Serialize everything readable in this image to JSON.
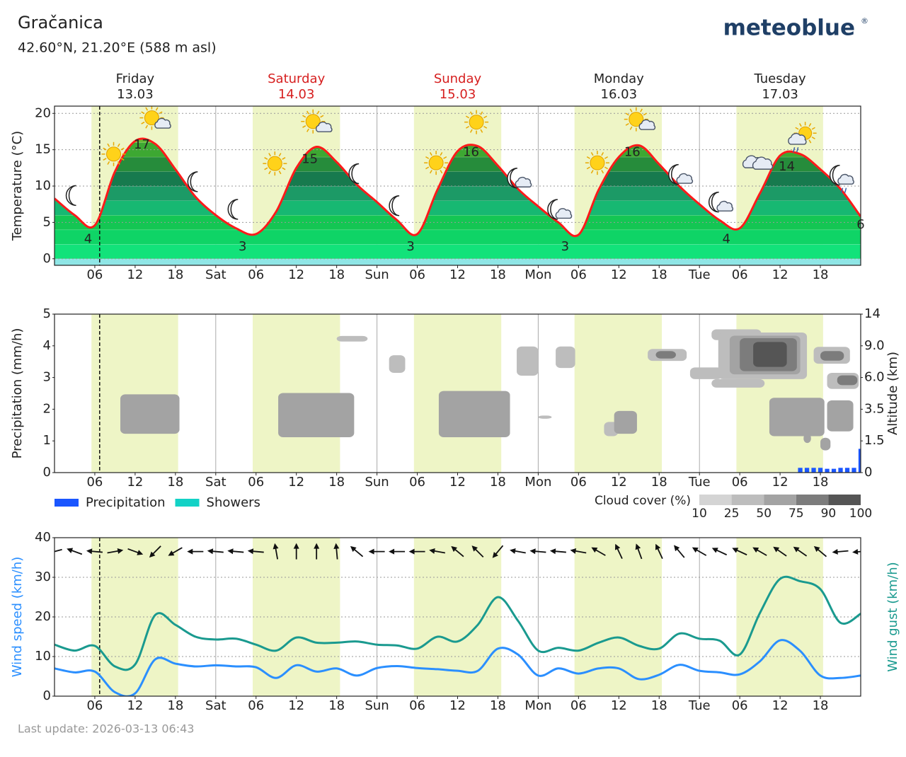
{
  "header": {
    "title": "Gračanica",
    "subtitle": "42.60°N, 21.20°E (588 m asl)",
    "logo": "meteoblue",
    "logo_mark": "®"
  },
  "footer": "Last update: 2026-03-13 06:43",
  "days": [
    {
      "name": "Friday",
      "date": "13.03",
      "start": 0,
      "weekend": false
    },
    {
      "name": "Saturday",
      "date": "14.03",
      "start": 24,
      "weekend": true
    },
    {
      "name": "Sunday",
      "date": "15.03",
      "start": 48,
      "weekend": true
    },
    {
      "name": "Monday",
      "date": "16.03",
      "start": 72,
      "weekend": false
    },
    {
      "name": "Tuesday",
      "date": "17.03",
      "start": 96,
      "weekend": false
    }
  ],
  "daylight": [
    [
      5.5,
      18.4
    ],
    [
      29.5,
      42.5
    ],
    [
      53.5,
      66.5
    ],
    [
      77.4,
      90.4
    ],
    [
      101.5,
      114.4
    ]
  ],
  "now": 6.72,
  "chart_data": [
    {
      "type": "line",
      "ylabel": "Temperature (°C)",
      "ylim": [
        -0.9,
        21
      ],
      "yticks": [
        0,
        5,
        10,
        15,
        20
      ],
      "grid": true,
      "xlim": [
        0,
        120
      ],
      "xticks": [
        {
          "value": 6,
          "label": "06"
        },
        {
          "value": 12,
          "label": "12"
        },
        {
          "value": 18,
          "label": "18"
        },
        {
          "value": 24,
          "label": "Sat"
        },
        {
          "value": 30,
          "label": "06"
        },
        {
          "value": 36,
          "label": "12"
        },
        {
          "value": 42,
          "label": "18"
        },
        {
          "value": 48,
          "label": "Sun"
        },
        {
          "value": 54,
          "label": "06"
        },
        {
          "value": 60,
          "label": "12"
        },
        {
          "value": 66,
          "label": "18"
        },
        {
          "value": 72,
          "label": "Mon"
        },
        {
          "value": 78,
          "label": "06"
        },
        {
          "value": 84,
          "label": "12"
        },
        {
          "value": 90,
          "label": "18"
        },
        {
          "value": 96,
          "label": "Tue"
        },
        {
          "value": 102,
          "label": "06"
        },
        {
          "value": 108,
          "label": "12"
        },
        {
          "value": 114,
          "label": "18"
        }
      ],
      "x": [
        0,
        3,
        6,
        9,
        12,
        15,
        18,
        21,
        24,
        27,
        30,
        33,
        36,
        39,
        42,
        45,
        48,
        51,
        54,
        57,
        60,
        63,
        66,
        69,
        72,
        75,
        78,
        81,
        84,
        87,
        90,
        93,
        96,
        99,
        102,
        105,
        108,
        111,
        114,
        117,
        120
      ],
      "series": [
        {
          "color": "#ff1a1a",
          "values": [
            8.3,
            6.0,
            4.6,
            12.0,
            16.2,
            15.8,
            12.3,
            8.5,
            6.0,
            4.2,
            3.4,
            6.5,
            12.5,
            15.4,
            13.3,
            10.2,
            7.8,
            5.3,
            3.4,
            9.5,
            14.8,
            15.5,
            12.8,
            9.6,
            7.2,
            5.0,
            3.3,
            9.5,
            14.0,
            15.6,
            13.0,
            10.0,
            7.5,
            5.3,
            4.2,
            9.0,
            14.2,
            14.4,
            12.3,
            9.6,
            5.8
          ]
        }
      ],
      "bands": [
        {
          "from": -2,
          "color": "#8fe6e6"
        },
        {
          "from": 0,
          "color": "#12e27a"
        },
        {
          "from": 2,
          "color": "#0fd466"
        },
        {
          "from": 4,
          "color": "#14c653"
        },
        {
          "from": 6,
          "color": "#17b872"
        },
        {
          "from": 8,
          "color": "#1c9a66"
        },
        {
          "from": 10,
          "color": "#177a4e"
        },
        {
          "from": 12,
          "color": "#268c3b"
        },
        {
          "from": 14,
          "color": "#3da832"
        },
        {
          "from": 16,
          "color": "#66bb33"
        }
      ],
      "extremes": [
        {
          "x": 5,
          "value": 4
        },
        {
          "x": 13,
          "value": 17
        },
        {
          "x": 28,
          "value": 3
        },
        {
          "x": 38,
          "value": 15
        },
        {
          "x": 53,
          "value": 3
        },
        {
          "x": 62,
          "value": 16
        },
        {
          "x": 76,
          "value": 3
        },
        {
          "x": 86,
          "value": 16
        },
        {
          "x": 100,
          "value": 4
        },
        {
          "x": 109,
          "value": 14
        },
        {
          "x": 120,
          "value": 6
        }
      ],
      "symbols": [
        {
          "x": 2.9,
          "y": 8.7,
          "icon": "moon"
        },
        {
          "x": 8.8,
          "y": 14.4,
          "icon": "sun"
        },
        {
          "x": 14.9,
          "y": 19,
          "icon": "sun-cloud"
        },
        {
          "x": 21,
          "y": 10.6,
          "icon": "moon"
        },
        {
          "x": 27,
          "y": 6.8,
          "icon": "moon"
        },
        {
          "x": 32.8,
          "y": 13.1,
          "icon": "sun"
        },
        {
          "x": 38.9,
          "y": 18.5,
          "icon": "sun-cloud"
        },
        {
          "x": 45,
          "y": 11.7,
          "icon": "moon"
        },
        {
          "x": 51,
          "y": 7.3,
          "icon": "moon"
        },
        {
          "x": 56.8,
          "y": 13.2,
          "icon": "sun"
        },
        {
          "x": 62.8,
          "y": 18.8,
          "icon": "sun"
        },
        {
          "x": 69,
          "y": 10.9,
          "icon": "moon-cloud"
        },
        {
          "x": 75,
          "y": 6.6,
          "icon": "moon-cloud"
        },
        {
          "x": 80.8,
          "y": 13.2,
          "icon": "sun"
        },
        {
          "x": 87,
          "y": 18.8,
          "icon": "sun-cloud"
        },
        {
          "x": 93,
          "y": 11.4,
          "icon": "moon-cloud"
        },
        {
          "x": 99,
          "y": 7.6,
          "icon": "moon-cloud"
        },
        {
          "x": 104.8,
          "y": 13.2,
          "icon": "cloud"
        },
        {
          "x": 110.9,
          "y": 16.5,
          "icon": "sun-cloud-rain"
        },
        {
          "x": 117,
          "y": 11.3,
          "icon": "moon-cloud-rain"
        }
      ]
    },
    {
      "type": "bar",
      "ylabel": "Precipitation (mm/h)",
      "y2label": "Altitude (km)",
      "ylim": [
        0,
        5
      ],
      "yticks": [
        0,
        1,
        2,
        3,
        4,
        5
      ],
      "y2ticks": [
        0,
        1.5,
        3.5,
        {
          "value": 6,
          "label": "6.0"
        },
        {
          "value": 9,
          "label": "9.0"
        },
        14
      ],
      "grid": false,
      "xlim": [
        0,
        120
      ],
      "xticks": [
        {
          "value": 6,
          "label": "06"
        },
        {
          "value": 12,
          "label": "12"
        },
        {
          "value": 18,
          "label": "18"
        },
        {
          "value": 24,
          "label": "Sat"
        },
        {
          "value": 30,
          "label": "06"
        },
        {
          "value": 36,
          "label": "12"
        },
        {
          "value": 42,
          "label": "18"
        },
        {
          "value": 48,
          "label": "Sun"
        },
        {
          "value": 54,
          "label": "06"
        },
        {
          "value": 60,
          "label": "12"
        },
        {
          "value": 66,
          "label": "18"
        },
        {
          "value": 72,
          "label": "Mon"
        },
        {
          "value": 78,
          "label": "06"
        },
        {
          "value": 84,
          "label": "12"
        },
        {
          "value": 90,
          "label": "18"
        },
        {
          "value": 96,
          "label": "Tue"
        },
        {
          "value": 102,
          "label": "06"
        },
        {
          "value": 108,
          "label": "12"
        },
        {
          "value": 114,
          "label": "18"
        }
      ],
      "x": [
        111,
        112,
        113,
        114,
        115,
        116,
        117,
        118,
        119,
        120
      ],
      "series": [
        {
          "name": "Precipitation",
          "color": "#1a56ff",
          "values": [
            0.15,
            0.15,
            0.15,
            0.15,
            0.12,
            0.12,
            0.15,
            0.15,
            0.15,
            0.75
          ]
        },
        {
          "name": "Showers",
          "color": "#13d2c6",
          "values": [
            0,
            0,
            0,
            0,
            0,
            0,
            0,
            0,
            0,
            0
          ]
        }
      ],
      "cloud_legend": {
        "label": "Cloud cover (%)",
        "ticks": [
          10,
          25,
          50,
          75,
          90,
          100
        ],
        "colors": [
          "#d4d4d4",
          "#bdbdbd",
          "#a3a3a3",
          "#7c7c7c",
          "#555555"
        ]
      },
      "clouds": [
        {
          "x0": 9.8,
          "x1": 18.6,
          "alt0": 1.95,
          "alt1": 4.67,
          "cover": 60
        },
        {
          "x0": 33.3,
          "x1": 44.6,
          "alt0": 1.73,
          "alt1": 4.78,
          "cover": 60
        },
        {
          "x0": 42,
          "x1": 46.6,
          "alt0": 9.67,
          "alt1": 10.56,
          "cover": 30
        },
        {
          "x0": 57.2,
          "x1": 67.8,
          "alt0": 1.73,
          "alt1": 4.94,
          "cover": 60
        },
        {
          "x0": 49.8,
          "x1": 52.2,
          "alt0": 6.44,
          "alt1": 8.11,
          "cover": 30
        },
        {
          "x0": 68.8,
          "x1": 72,
          "alt0": 6.17,
          "alt1": 8.94,
          "cover": 30
        },
        {
          "x0": 74.6,
          "x1": 77.5,
          "alt0": 6.9,
          "alt1": 8.94,
          "cover": 30
        },
        {
          "x0": 72,
          "x1": 74,
          "alt0": 2.9,
          "alt1": 3.1,
          "cover": 30
        },
        {
          "x0": 81.8,
          "x1": 83.9,
          "alt0": 1.8,
          "alt1": 2.7,
          "cover": 30
        },
        {
          "x0": 83.3,
          "x1": 86.7,
          "alt0": 1.95,
          "alt1": 3.39,
          "cover": 60
        },
        {
          "x0": 88.3,
          "x1": 94.1,
          "alt0": 7.57,
          "alt1": 8.7,
          "cover": 30
        },
        {
          "x0": 89.5,
          "x1": 92.5,
          "alt0": 7.8,
          "alt1": 8.5,
          "cover": 80
        },
        {
          "x0": 97.8,
          "x1": 105.2,
          "alt0": 9.9,
          "alt1": 11.6,
          "cover": 30
        },
        {
          "x0": 100,
          "x1": 103.5,
          "alt0": 10.3,
          "alt1": 11.1,
          "cover": 60
        },
        {
          "x0": 94.6,
          "x1": 99.4,
          "alt0": 5.87,
          "alt1": 6.95,
          "cover": 30
        },
        {
          "x0": 97.8,
          "x1": 105.7,
          "alt0": 5.2,
          "alt1": 5.87,
          "cover": 30
        },
        {
          "x0": 98.8,
          "x1": 112,
          "alt0": 5.87,
          "alt1": 11.1,
          "cover": 30
        },
        {
          "x0": 100.5,
          "x1": 111,
          "alt0": 6.3,
          "alt1": 10.6,
          "cover": 60
        },
        {
          "x0": 102,
          "x1": 110.5,
          "alt0": 6.6,
          "alt1": 10.2,
          "cover": 80
        },
        {
          "x0": 104,
          "x1": 109,
          "alt0": 7.0,
          "alt1": 9.6,
          "cover": 95
        },
        {
          "x0": 113,
          "x1": 118.4,
          "alt0": 7.3,
          "alt1": 8.9,
          "cover": 30
        },
        {
          "x0": 114,
          "x1": 117.5,
          "alt0": 7.6,
          "alt1": 8.5,
          "cover": 80
        },
        {
          "x0": 115,
          "x1": 119.7,
          "alt0": 5.1,
          "alt1": 6.44,
          "cover": 30
        },
        {
          "x0": 116.5,
          "x1": 119.5,
          "alt0": 5.4,
          "alt1": 6.2,
          "cover": 80
        },
        {
          "x0": 106.4,
          "x1": 114.6,
          "alt0": 1.8,
          "alt1": 4.4,
          "cover": 60
        },
        {
          "x0": 115,
          "x1": 118.9,
          "alt0": 2.1,
          "alt1": 4.2,
          "cover": 60
        },
        {
          "x0": 111.5,
          "x1": 112.6,
          "alt0": 1.4,
          "alt1": 1.95,
          "cover": 60
        },
        {
          "x0": 114,
          "x1": 115.5,
          "alt0": 1.05,
          "alt1": 1.7,
          "cover": 60
        }
      ]
    },
    {
      "type": "line",
      "ylabel": "Wind speed (km/h)",
      "ylabel_color": "#2b8fff",
      "y2label": "Wind gust (km/h)",
      "y2label_color": "#1a9a8f",
      "ylim": [
        0,
        40
      ],
      "yticks": [
        0,
        10,
        20,
        30,
        40
      ],
      "grid": true,
      "xlim": [
        0,
        120
      ],
      "xticks": [
        {
          "value": 6,
          "label": "06"
        },
        {
          "value": 12,
          "label": "12"
        },
        {
          "value": 18,
          "label": "18"
        },
        {
          "value": 24,
          "label": "Sat"
        },
        {
          "value": 30,
          "label": "06"
        },
        {
          "value": 36,
          "label": "12"
        },
        {
          "value": 42,
          "label": "18"
        },
        {
          "value": 48,
          "label": "Sun"
        },
        {
          "value": 54,
          "label": "06"
        },
        {
          "value": 60,
          "label": "12"
        },
        {
          "value": 66,
          "label": "18"
        },
        {
          "value": 72,
          "label": "Mon"
        },
        {
          "value": 78,
          "label": "06"
        },
        {
          "value": 84,
          "label": "12"
        },
        {
          "value": 90,
          "label": "18"
        },
        {
          "value": 96,
          "label": "Tue"
        },
        {
          "value": 102,
          "label": "06"
        },
        {
          "value": 108,
          "label": "12"
        },
        {
          "value": 114,
          "label": "18"
        }
      ],
      "x": [
        0,
        3,
        6,
        9,
        12,
        15,
        18,
        21,
        24,
        27,
        30,
        33,
        36,
        39,
        42,
        45,
        48,
        51,
        54,
        57,
        60,
        63,
        66,
        69,
        72,
        75,
        78,
        81,
        84,
        87,
        90,
        93,
        96,
        99,
        102,
        105,
        108,
        111,
        114,
        117,
        120
      ],
      "series": [
        {
          "color": "#2b8fff",
          "values": [
            7.0,
            6.0,
            6.2,
            1.0,
            0.7,
            9.3,
            8.2,
            7.5,
            7.8,
            7.5,
            7.3,
            4.6,
            7.8,
            6.2,
            7.0,
            5.2,
            7.1,
            7.6,
            7.1,
            6.8,
            6.4,
            6.4,
            12.0,
            10.5,
            5.2,
            7.0,
            5.7,
            7.0,
            7.0,
            4.3,
            5.4,
            7.9,
            6.4,
            6.0,
            5.5,
            8.8,
            14.1,
            11.4,
            5.2,
            4.6,
            5.2
          ]
        },
        {
          "color": "#1a9a8f",
          "values": [
            13,
            11.5,
            12.7,
            7.5,
            8,
            20.5,
            18,
            15,
            14.3,
            14.5,
            13,
            11.5,
            14.8,
            13.5,
            13.5,
            13.8,
            13,
            12.8,
            12,
            15,
            13.8,
            18,
            25,
            19,
            11.5,
            12.2,
            11.5,
            13.5,
            14.8,
            12.7,
            12,
            15.8,
            14.5,
            14,
            10.5,
            21,
            29.6,
            29,
            27,
            18.5,
            20.8
          ]
        }
      ],
      "wind_direction_level": 36.5,
      "wind_direction": [
        255,
        290,
        275,
        80,
        110,
        225,
        240,
        270,
        275,
        275,
        275,
        350,
        0,
        0,
        355,
        310,
        270,
        270,
        270,
        280,
        310,
        315,
        220,
        280,
        275,
        275,
        280,
        300,
        335,
        340,
        335,
        320,
        300,
        295,
        295,
        300,
        305,
        305,
        310,
        265,
        265
      ]
    }
  ]
}
